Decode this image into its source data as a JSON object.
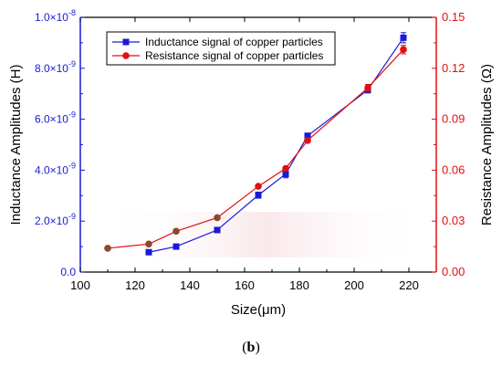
{
  "caption": {
    "open": "(",
    "letter": "b",
    "close": ")"
  },
  "chart_data": {
    "type": "line",
    "xlabel": "Size(μm)",
    "ylabel_left": "Inductance Amplitudes (H)",
    "ylabel_right": "Resistance Amplitudes (Ω)",
    "xlim": [
      100,
      230
    ],
    "x_ticks": [
      100,
      120,
      140,
      160,
      180,
      200,
      220
    ],
    "ylim_left": [
      0,
      1e-08
    ],
    "y_left_ticks": [
      {
        "value": 0,
        "label": "0.0"
      },
      {
        "value": 2e-09,
        "label": "2.0×10",
        "exp": "-9"
      },
      {
        "value": 4e-09,
        "label": "4.0×10",
        "exp": "-9"
      },
      {
        "value": 6e-09,
        "label": "6.0×10",
        "exp": "-9"
      },
      {
        "value": 8e-09,
        "label": "8.0×10",
        "exp": "-9"
      },
      {
        "value": 1e-08,
        "label": "1.0×10",
        "exp": "-8"
      }
    ],
    "ylim_right": [
      0,
      0.15
    ],
    "y_right_ticks": [
      {
        "value": 0,
        "label": "0.00"
      },
      {
        "value": 0.03,
        "label": "0.03"
      },
      {
        "value": 0.06,
        "label": "0.06"
      },
      {
        "value": 0.09,
        "label": "0.09"
      },
      {
        "value": 0.12,
        "label": "0.12"
      },
      {
        "value": 0.15,
        "label": "0.15"
      }
    ],
    "legend_position": "top-left",
    "grid": false,
    "series": [
      {
        "name": "Inductance signal of copper particles",
        "axis": "left",
        "color": "#1a1ad6",
        "marker": "square",
        "x": [
          125,
          135,
          150,
          165,
          175,
          183,
          205,
          218
        ],
        "y": [
          7.8e-10,
          1e-09,
          1.65e-09,
          3.02e-09,
          3.85e-09,
          5.35e-09,
          7.15e-09,
          9.2e-09
        ],
        "err": [
          4e-11,
          6e-11,
          8e-11,
          1.2e-10,
          1.5e-10,
          1e-10,
          1.2e-10,
          2e-10
        ]
      },
      {
        "name": "Resistance signal of copper particles",
        "axis": "right",
        "color": "#e01010",
        "marker": "circle",
        "x": [
          110,
          125,
          135,
          150,
          165,
          175,
          183,
          205,
          218
        ],
        "y": [
          0.014,
          0.0165,
          0.024,
          0.032,
          0.0505,
          0.061,
          0.0775,
          0.1085,
          0.131
        ],
        "err": [
          0.0005,
          0.0008,
          0.0008,
          0.001,
          0.001,
          0.0012,
          0.0015,
          0.002,
          0.0025
        ]
      }
    ]
  }
}
